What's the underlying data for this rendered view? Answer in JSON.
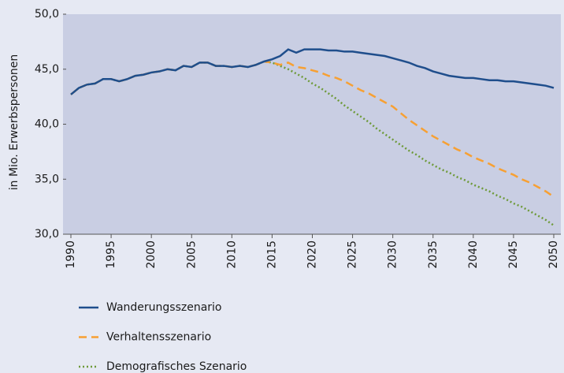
{
  "chart_data": {
    "type": "line",
    "ylabel": "in Mio. Erwerbspersonen",
    "x": [
      1990,
      1991,
      1992,
      1993,
      1994,
      1995,
      1996,
      1997,
      1998,
      1999,
      2000,
      2001,
      2002,
      2003,
      2004,
      2005,
      2006,
      2007,
      2008,
      2009,
      2010,
      2011,
      2012,
      2013,
      2014,
      2015,
      2016,
      2017,
      2018,
      2019,
      2020,
      2021,
      2022,
      2023,
      2024,
      2025,
      2026,
      2027,
      2028,
      2029,
      2030,
      2031,
      2032,
      2033,
      2034,
      2035,
      2036,
      2037,
      2038,
      2039,
      2040,
      2041,
      2042,
      2043,
      2044,
      2045,
      2046,
      2047,
      2048,
      2049,
      2050
    ],
    "xlim": [
      1990,
      2050
    ],
    "xticks": [
      1990,
      1995,
      2000,
      2005,
      2010,
      2015,
      2020,
      2025,
      2030,
      2035,
      2040,
      2045,
      2050
    ],
    "ylim": [
      30,
      50
    ],
    "yticks": [
      {
        "value": 30,
        "label": "30,0"
      },
      {
        "value": 35,
        "label": "35,0"
      },
      {
        "value": 40,
        "label": "40,0"
      },
      {
        "value": 45,
        "label": "45,0"
      },
      {
        "value": 50,
        "label": "50,0"
      }
    ],
    "series": [
      {
        "name": "Wanderungsszenario",
        "color": "#1f4e8c",
        "dash": "solid",
        "values": [
          42.7,
          43.3,
          43.6,
          43.7,
          44.1,
          44.1,
          43.9,
          44.1,
          44.4,
          44.5,
          44.7,
          44.8,
          45.0,
          44.9,
          45.3,
          45.2,
          45.6,
          45.6,
          45.3,
          45.3,
          45.2,
          45.3,
          45.2,
          45.4,
          45.7,
          45.9,
          46.2,
          46.8,
          46.5,
          46.8,
          46.8,
          46.8,
          46.7,
          46.7,
          46.6,
          46.6,
          46.5,
          46.4,
          46.3,
          46.2,
          46.0,
          45.8,
          45.6,
          45.3,
          45.1,
          44.8,
          44.6,
          44.4,
          44.3,
          44.2,
          44.2,
          44.1,
          44.0,
          44.0,
          43.9,
          43.9,
          43.8,
          43.7,
          43.6,
          43.5,
          43.3
        ]
      },
      {
        "name": "Verhaltensszenario",
        "color": "#f7a033",
        "dash": "dashed",
        "values": [
          42.7,
          43.3,
          43.6,
          43.7,
          44.1,
          44.1,
          43.9,
          44.1,
          44.4,
          44.5,
          44.7,
          44.8,
          45.0,
          44.9,
          45.3,
          45.2,
          45.6,
          45.6,
          45.3,
          45.3,
          45.2,
          45.3,
          45.2,
          45.4,
          45.7,
          45.6,
          45.4,
          45.6,
          45.2,
          45.1,
          44.9,
          44.7,
          44.4,
          44.2,
          43.9,
          43.5,
          43.1,
          42.8,
          42.4,
          42.0,
          41.6,
          41.0,
          40.4,
          39.9,
          39.4,
          38.9,
          38.5,
          38.1,
          37.7,
          37.4,
          37.0,
          36.7,
          36.4,
          36.0,
          35.7,
          35.4,
          35.0,
          34.7,
          34.3,
          33.9,
          33.4
        ]
      },
      {
        "name": "Demografisches Szenario",
        "color": "#6e9a3a",
        "dash": "dotted",
        "values": [
          42.7,
          43.3,
          43.6,
          43.7,
          44.1,
          44.1,
          43.9,
          44.1,
          44.4,
          44.5,
          44.7,
          44.8,
          45.0,
          44.9,
          45.3,
          45.2,
          45.6,
          45.6,
          45.3,
          45.3,
          45.2,
          45.3,
          45.2,
          45.4,
          45.7,
          45.6,
          45.3,
          45.0,
          44.6,
          44.2,
          43.7,
          43.3,
          42.8,
          42.3,
          41.7,
          41.2,
          40.7,
          40.2,
          39.6,
          39.1,
          38.6,
          38.1,
          37.6,
          37.2,
          36.7,
          36.3,
          35.9,
          35.6,
          35.2,
          34.9,
          34.5,
          34.2,
          33.9,
          33.5,
          33.2,
          32.8,
          32.5,
          32.1,
          31.7,
          31.3,
          30.8
        ]
      }
    ]
  }
}
